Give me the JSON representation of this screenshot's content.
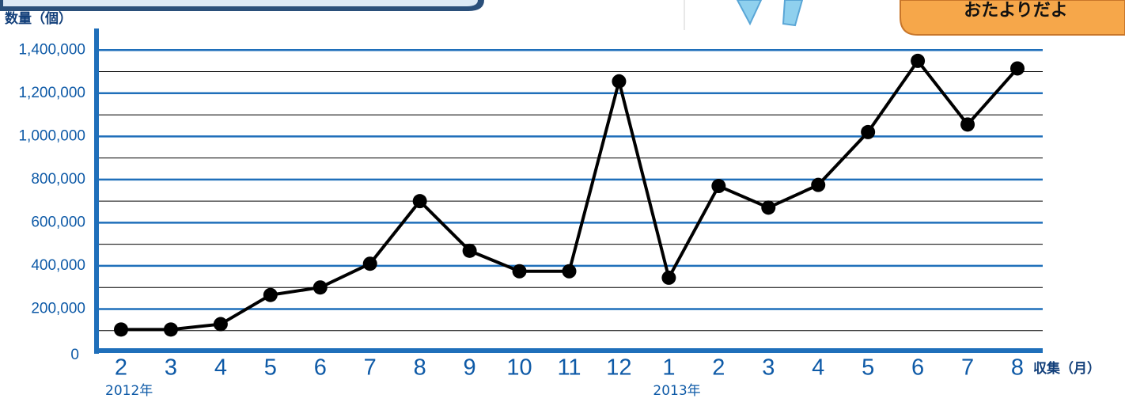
{
  "header": {
    "button": "おたよりだよ"
  },
  "chart_data": {
    "type": "line",
    "y_label": "数量（個）",
    "x_label": "収集（月）",
    "categories": [
      "2",
      "3",
      "4",
      "5",
      "6",
      "7",
      "8",
      "9",
      "10",
      "11",
      "12",
      "1",
      "2",
      "3",
      "4",
      "5",
      "6",
      "7",
      "8"
    ],
    "year_labels": [
      "2012年",
      null,
      null,
      null,
      null,
      null,
      null,
      null,
      null,
      null,
      null,
      "2013年",
      null,
      null,
      null,
      null,
      null,
      null,
      null
    ],
    "values": [
      105000,
      105000,
      130000,
      265000,
      300000,
      410000,
      700000,
      470000,
      375000,
      375000,
      1255000,
      345000,
      770000,
      670000,
      775000,
      1020000,
      1350000,
      1055000,
      1315000
    ],
    "color": "#000000",
    "grid_color": "#1f6fba",
    "minor_grid_color": "#000000",
    "ylim": [
      0,
      1500000
    ],
    "yticks": [
      0,
      {
        "value": 200000,
        "label": "200,000"
      },
      {
        "value": 400000,
        "label": "400,000"
      },
      {
        "value": 600000,
        "label": "600,000"
      },
      {
        "value": 800000,
        "label": "800,000"
      },
      {
        "value": 1000000,
        "label": "1,000,000"
      },
      {
        "value": 1200000,
        "label": "1,200,000"
      },
      {
        "value": 1400000,
        "label": "1,400,000"
      }
    ],
    "minor_yticks": [
      100000,
      300000,
      500000,
      700000,
      900000,
      1100000,
      1300000
    ],
    "grid": true
  }
}
